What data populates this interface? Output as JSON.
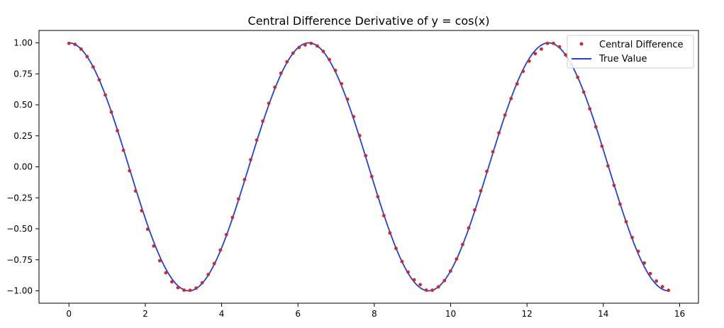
{
  "chart_data": {
    "type": "line",
    "title": "Central Difference Derivative of y = cos(x)",
    "xlabel": "",
    "ylabel": "",
    "xlim": [
      -0.785,
      16.493
    ],
    "ylim": [
      -1.1,
      1.1
    ],
    "x_ticks": [
      0,
      2,
      4,
      6,
      8,
      10,
      12,
      14,
      16
    ],
    "x_tick_labels": [
      "0",
      "2",
      "4",
      "6",
      "8",
      "10",
      "12",
      "14",
      "16"
    ],
    "y_ticks": [
      1.0,
      0.75,
      0.5,
      0.25,
      0.0,
      -0.25,
      -0.5,
      -0.75,
      -1.0
    ],
    "y_tick_labels": [
      "1.00",
      "0.75",
      "0.50",
      "0.25",
      "0.00",
      "−0.25",
      "−0.50",
      "−0.75",
      "−1.00"
    ],
    "grid": false,
    "legend_position": "top-right",
    "series": [
      {
        "name": "Central Difference",
        "kind": "points",
        "color": "#d62728",
        "x": [
          0.0,
          0.1586,
          0.3173,
          0.4759,
          0.6347,
          0.7933,
          0.952,
          1.1107,
          1.2693,
          1.428,
          1.5866,
          1.7453,
          1.904,
          2.0626,
          2.2213,
          2.38,
          2.5386,
          2.6973,
          2.856,
          3.0146,
          3.1733,
          3.332,
          3.4906,
          3.6493,
          3.808,
          3.9666,
          4.1253,
          4.284,
          4.4426,
          4.6013,
          4.76,
          4.9186,
          5.0773,
          5.236,
          5.3946,
          5.5533,
          5.712,
          5.8706,
          6.0293,
          6.188,
          6.3466,
          6.5053,
          6.664,
          6.8226,
          6.9813,
          7.14,
          7.2986,
          7.4573,
          7.616,
          7.7746,
          7.9333,
          8.092,
          8.2506,
          8.4093,
          8.568,
          8.7266,
          8.8853,
          9.044,
          9.2026,
          9.3613,
          9.52,
          9.6786,
          9.8373,
          9.996,
          10.1546,
          10.3133,
          10.472,
          10.6306,
          10.7893,
          10.948,
          11.1066,
          11.2653,
          11.424,
          11.5826,
          11.7413,
          11.9,
          12.0586,
          12.2173,
          12.376,
          12.5346,
          12.6933,
          12.852,
          13.0106,
          13.1693,
          13.328,
          13.4866,
          13.6453,
          13.804,
          13.9626,
          14.1213,
          14.28,
          14.4386,
          14.5973,
          14.756,
          14.9146,
          15.0733,
          15.232,
          15.3906,
          15.5493,
          15.708
        ],
        "y": [
          0.9958,
          0.9874,
          0.9499,
          0.8888,
          0.8053,
          0.7015,
          0.5794,
          0.4418,
          0.2917,
          0.1324,
          -0.0315,
          -0.1951,
          -0.3537,
          -0.5031,
          -0.6388,
          -0.7571,
          -0.8543,
          -0.9277,
          -0.9749,
          -0.9946,
          -0.9962,
          -0.978,
          -0.9351,
          -0.8685,
          -0.7799,
          -0.6719,
          -0.547,
          -0.4082,
          -0.2589,
          -0.1023,
          0.0577,
          0.2158,
          0.3691,
          0.5126,
          0.6421,
          0.7546,
          0.8469,
          0.9168,
          0.9625,
          0.983,
          0.9958,
          0.9749,
          0.9311,
          0.865,
          0.7775,
          0.6702,
          0.5451,
          0.4047,
          0.2519,
          0.0899,
          -0.0779,
          -0.2405,
          -0.3936,
          -0.5336,
          -0.6579,
          -0.7637,
          -0.8489,
          -0.9113,
          -0.9498,
          -0.9945,
          -0.995,
          -0.9681,
          -0.9179,
          -0.8412,
          -0.7434,
          -0.6264,
          -0.4934,
          -0.3479,
          -0.194,
          -0.0361,
          0.1216,
          0.2741,
          0.4177,
          0.5506,
          0.6693,
          0.7707,
          0.8524,
          0.9124,
          0.9499,
          0.9958,
          0.9959,
          0.9684,
          0.9033,
          0.8215,
          0.7227,
          0.6029,
          0.4683,
          0.3217,
          0.1667,
          0.0073,
          -0.1495,
          -0.3006,
          -0.4422,
          -0.5701,
          -0.6813,
          -0.7757,
          -0.861,
          -0.9209,
          -0.9669,
          -0.9958
        ]
      },
      {
        "name": "True Value",
        "kind": "line",
        "color": "#1f3ff0",
        "function": "cos",
        "x_range": [
          0,
          15.708
        ]
      }
    ]
  }
}
